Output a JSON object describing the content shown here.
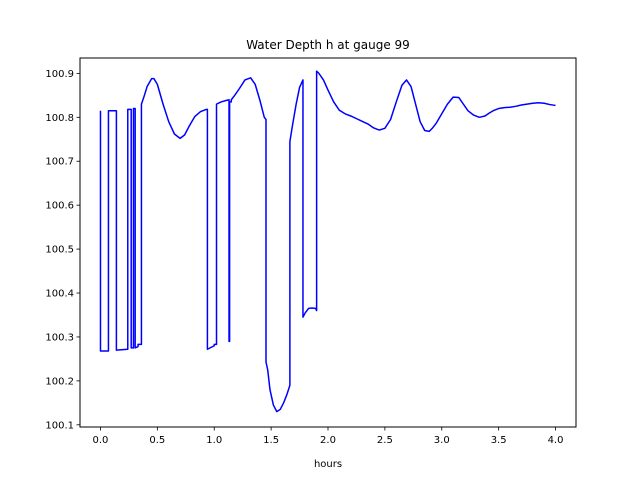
{
  "chart_data": {
    "type": "line",
    "title": "Water Depth h at gauge 99",
    "xlabel": "hours",
    "ylabel": "",
    "xlim": [
      -0.18,
      4.18
    ],
    "ylim": [
      100.095,
      100.935
    ],
    "xticks": [
      0.0,
      0.5,
      1.0,
      1.5,
      2.0,
      2.5,
      3.0,
      3.5,
      4.0
    ],
    "xtick_labels": [
      "0.0",
      "0.5",
      "1.0",
      "1.5",
      "2.0",
      "2.5",
      "3.0",
      "3.5",
      "4.0"
    ],
    "yticks": [
      100.1,
      100.2,
      100.3,
      100.4,
      100.5,
      100.6,
      100.7,
      100.8,
      100.9
    ],
    "ytick_labels": [
      "100.1",
      "100.2",
      "100.3",
      "100.4",
      "100.5",
      "100.6",
      "100.7",
      "100.8",
      "100.9"
    ],
    "grid": false,
    "legend": "none",
    "series": [
      {
        "color": "#0000ff",
        "x": [
          0.0,
          0.0,
          0.07,
          0.07,
          0.14,
          0.14,
          0.24,
          0.24,
          0.27,
          0.27,
          0.29,
          0.29,
          0.305,
          0.305,
          0.33,
          0.33,
          0.36,
          0.36,
          0.38,
          0.41,
          0.45,
          0.47,
          0.5,
          0.55,
          0.6,
          0.65,
          0.7,
          0.74,
          0.78,
          0.83,
          0.88,
          0.93,
          0.94,
          0.94,
          1.0,
          1.0,
          1.02,
          1.02,
          1.06,
          1.1,
          1.13,
          1.13,
          1.135,
          1.135,
          1.15,
          1.15,
          1.18,
          1.22,
          1.27,
          1.32,
          1.36,
          1.4,
          1.44,
          1.455,
          1.455,
          1.47,
          1.49,
          1.52,
          1.55,
          1.58,
          1.61,
          1.64,
          1.665,
          1.665,
          1.69,
          1.72,
          1.75,
          1.78,
          1.78,
          1.8,
          1.83,
          1.86,
          1.89,
          1.9,
          1.9,
          1.92,
          1.96,
          2.0,
          2.05,
          2.1,
          2.15,
          2.2,
          2.25,
          2.3,
          2.35,
          2.4,
          2.45,
          2.5,
          2.55,
          2.6,
          2.65,
          2.69,
          2.73,
          2.77,
          2.81,
          2.85,
          2.89,
          2.92,
          2.95,
          3.0,
          3.05,
          3.1,
          3.15,
          3.19,
          3.23,
          3.28,
          3.33,
          3.38,
          3.42,
          3.46,
          3.5,
          3.55,
          3.6,
          3.65,
          3.7,
          3.75,
          3.8,
          3.85,
          3.9,
          3.95,
          4.0
        ],
        "y": [
          100.815,
          100.268,
          100.268,
          100.815,
          100.815,
          100.27,
          100.272,
          100.818,
          100.818,
          100.275,
          100.275,
          100.82,
          100.82,
          100.275,
          100.278,
          100.283,
          100.283,
          100.83,
          100.845,
          100.87,
          100.888,
          100.888,
          100.875,
          100.83,
          100.79,
          100.762,
          100.752,
          100.76,
          100.78,
          100.802,
          100.813,
          100.818,
          100.818,
          100.272,
          100.28,
          100.283,
          100.283,
          100.83,
          100.835,
          100.838,
          100.84,
          100.29,
          100.29,
          100.835,
          100.835,
          100.84,
          100.85,
          100.865,
          100.885,
          100.89,
          100.875,
          100.84,
          100.8,
          100.795,
          100.243,
          100.225,
          100.18,
          100.145,
          100.13,
          100.135,
          100.15,
          100.17,
          100.19,
          100.745,
          100.785,
          100.83,
          100.868,
          100.885,
          100.345,
          100.355,
          100.365,
          100.366,
          100.365,
          100.36,
          100.905,
          100.9,
          100.885,
          100.862,
          100.835,
          100.816,
          100.808,
          100.803,
          100.797,
          100.791,
          100.785,
          100.776,
          100.771,
          100.775,
          100.795,
          100.835,
          100.873,
          100.885,
          100.87,
          100.83,
          100.79,
          100.77,
          100.768,
          100.776,
          100.786,
          100.808,
          100.83,
          100.846,
          100.845,
          100.83,
          100.815,
          100.805,
          100.8,
          100.803,
          100.81,
          100.816,
          100.82,
          100.822,
          100.823,
          100.825,
          100.828,
          100.83,
          100.832,
          100.833,
          100.832,
          100.829,
          100.827
        ]
      }
    ]
  }
}
